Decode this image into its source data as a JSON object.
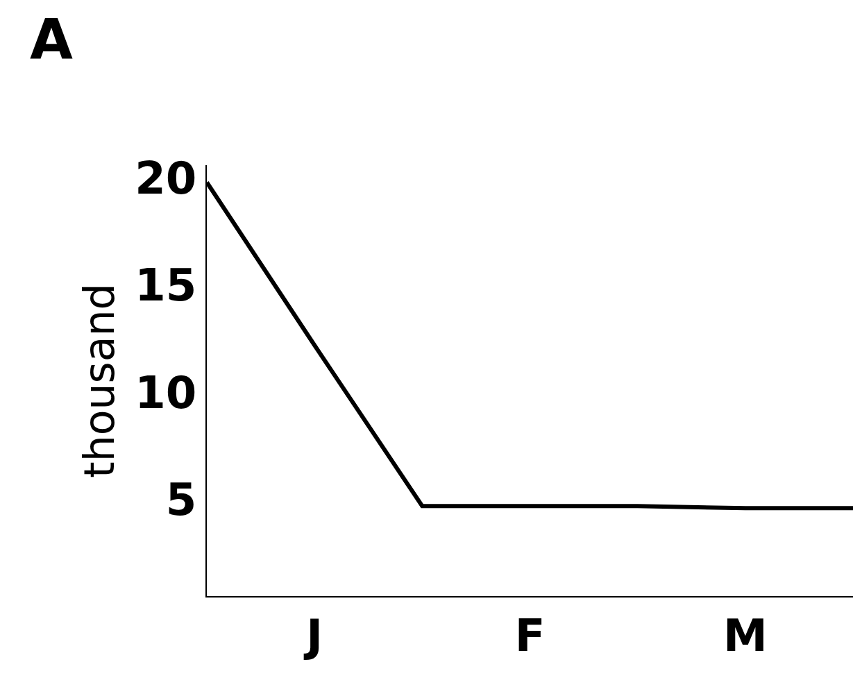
{
  "chart_data": {
    "type": "line",
    "title": "A",
    "ylabel": "thousand",
    "categories": [
      null,
      "J",
      null,
      "F",
      null,
      "M",
      null
    ],
    "series": [
      {
        "color": "#000000",
        "values": [
          19.8,
          12.2,
          4.7,
          4.7,
          4.7,
          4.6,
          4.6
        ]
      }
    ],
    "ylim": [
      0.5,
      20.6
    ],
    "yticks": [
      5,
      10,
      15,
      20
    ],
    "grid": false,
    "marker": "none",
    "line_style": "solid"
  }
}
